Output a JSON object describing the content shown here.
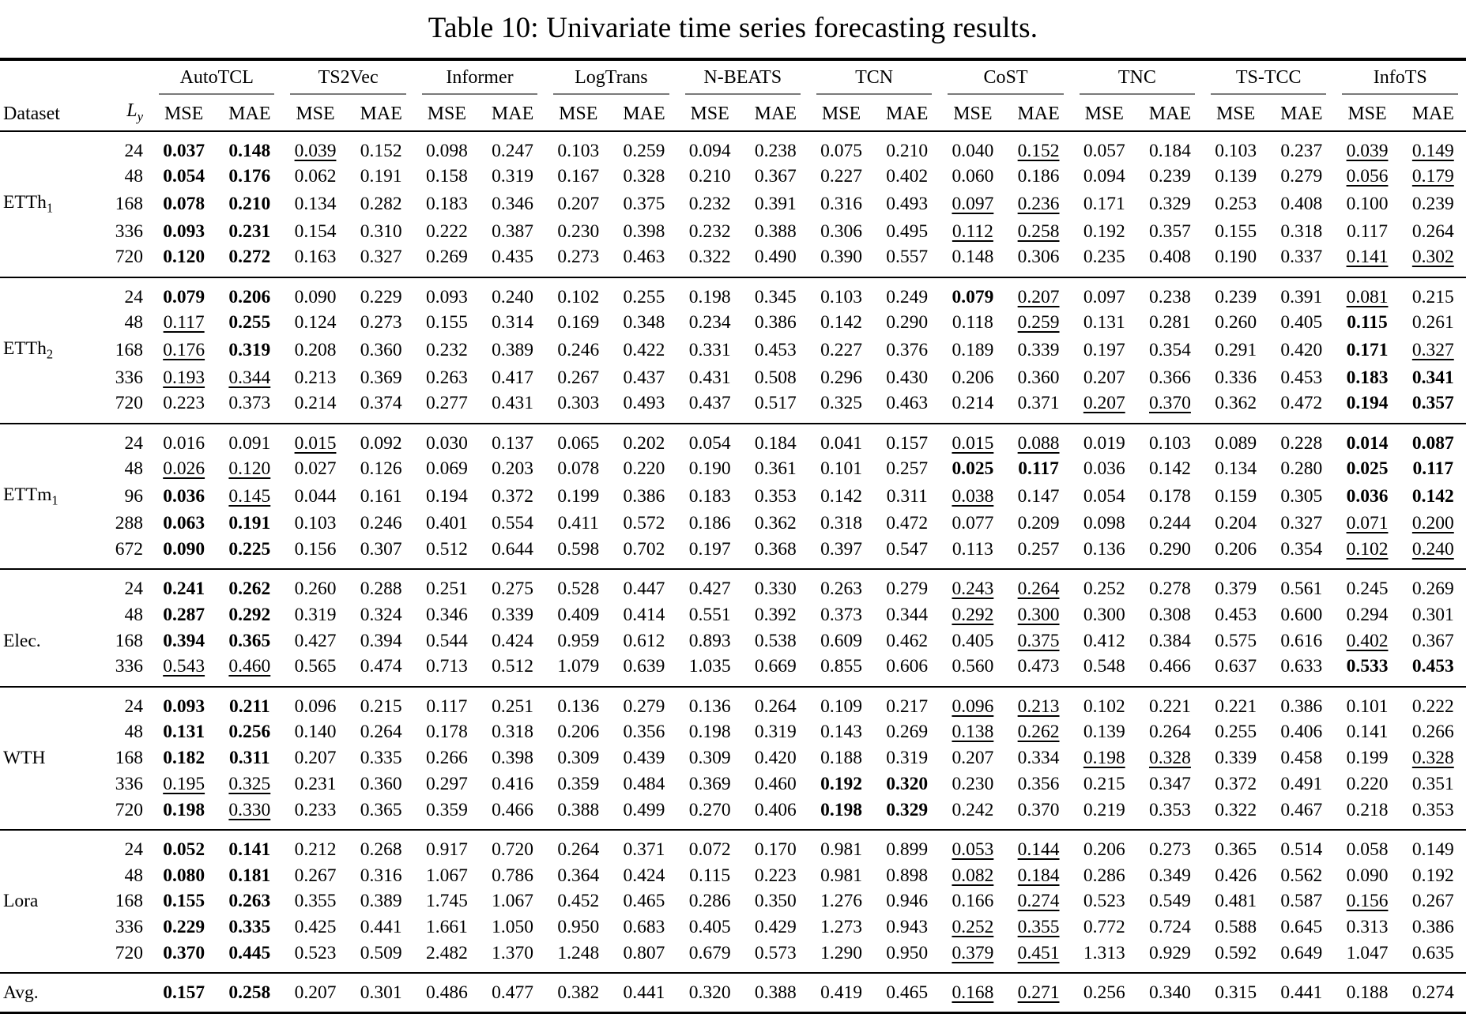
{
  "title": "Table 10: Univariate time series forecasting results.",
  "columns": {
    "dataset_header": "Dataset",
    "horizon_header": {
      "base": "L",
      "sub": "y"
    },
    "metrics": [
      "MSE",
      "MAE"
    ],
    "methods": [
      "AutoTCL",
      "TS2Vec",
      "Informer",
      "LogTrans",
      "N-BEATS",
      "TCN",
      "CoST",
      "TNC",
      "TS-TCC",
      "InfoTS"
    ]
  },
  "style_legend": {
    "bold_prefix": "b:",
    "underline_prefix": "u:"
  },
  "groups": [
    {
      "dataset": {
        "base": "ETTh",
        "sub": "1"
      },
      "rows": [
        {
          "h": "24",
          "cells": [
            "b:0.037",
            "b:0.148",
            "u:0.039",
            "0.152",
            "0.098",
            "0.247",
            "0.103",
            "0.259",
            "0.094",
            "0.238",
            "0.075",
            "0.210",
            "0.040",
            "u:0.152",
            "0.057",
            "0.184",
            "0.103",
            "0.237",
            "u:0.039",
            "u:0.149"
          ]
        },
        {
          "h": "48",
          "cells": [
            "b:0.054",
            "b:0.176",
            "0.062",
            "0.191",
            "0.158",
            "0.319",
            "0.167",
            "0.328",
            "0.210",
            "0.367",
            "0.227",
            "0.402",
            "0.060",
            "0.186",
            "0.094",
            "0.239",
            "0.139",
            "0.279",
            "u:0.056",
            "u:0.179"
          ]
        },
        {
          "h": "168",
          "cells": [
            "b:0.078",
            "b:0.210",
            "0.134",
            "0.282",
            "0.183",
            "0.346",
            "0.207",
            "0.375",
            "0.232",
            "0.391",
            "0.316",
            "0.493",
            "u:0.097",
            "u:0.236",
            "0.171",
            "0.329",
            "0.253",
            "0.408",
            "0.100",
            "0.239"
          ]
        },
        {
          "h": "336",
          "cells": [
            "b:0.093",
            "b:0.231",
            "0.154",
            "0.310",
            "0.222",
            "0.387",
            "0.230",
            "0.398",
            "0.232",
            "0.388",
            "0.306",
            "0.495",
            "u:0.112",
            "u:0.258",
            "0.192",
            "0.357",
            "0.155",
            "0.318",
            "0.117",
            "0.264"
          ]
        },
        {
          "h": "720",
          "cells": [
            "b:0.120",
            "b:0.272",
            "0.163",
            "0.327",
            "0.269",
            "0.435",
            "0.273",
            "0.463",
            "0.322",
            "0.490",
            "0.390",
            "0.557",
            "0.148",
            "0.306",
            "0.235",
            "0.408",
            "0.190",
            "0.337",
            "u:0.141",
            "u:0.302"
          ]
        }
      ]
    },
    {
      "dataset": {
        "base": "ETTh",
        "sub": "2"
      },
      "rows": [
        {
          "h": "24",
          "cells": [
            "b:0.079",
            "b:0.206",
            "0.090",
            "0.229",
            "0.093",
            "0.240",
            "0.102",
            "0.255",
            "0.198",
            "0.345",
            "0.103",
            "0.249",
            "b:0.079",
            "u:0.207",
            "0.097",
            "0.238",
            "0.239",
            "0.391",
            "u:0.081",
            "0.215"
          ]
        },
        {
          "h": "48",
          "cells": [
            "u:0.117",
            "b:0.255",
            "0.124",
            "0.273",
            "0.155",
            "0.314",
            "0.169",
            "0.348",
            "0.234",
            "0.386",
            "0.142",
            "0.290",
            "0.118",
            "u:0.259",
            "0.131",
            "0.281",
            "0.260",
            "0.405",
            "b:0.115",
            "0.261"
          ]
        },
        {
          "h": "168",
          "cells": [
            "u:0.176",
            "b:0.319",
            "0.208",
            "0.360",
            "0.232",
            "0.389",
            "0.246",
            "0.422",
            "0.331",
            "0.453",
            "0.227",
            "0.376",
            "0.189",
            "0.339",
            "0.197",
            "0.354",
            "0.291",
            "0.420",
            "b:0.171",
            "u:0.327"
          ]
        },
        {
          "h": "336",
          "cells": [
            "u:0.193",
            "u:0.344",
            "0.213",
            "0.369",
            "0.263",
            "0.417",
            "0.267",
            "0.437",
            "0.431",
            "0.508",
            "0.296",
            "0.430",
            "0.206",
            "0.360",
            "0.207",
            "0.366",
            "0.336",
            "0.453",
            "b:0.183",
            "b:0.341"
          ]
        },
        {
          "h": "720",
          "cells": [
            "0.223",
            "0.373",
            "0.214",
            "0.374",
            "0.277",
            "0.431",
            "0.303",
            "0.493",
            "0.437",
            "0.517",
            "0.325",
            "0.463",
            "0.214",
            "0.371",
            "u:0.207",
            "u:0.370",
            "0.362",
            "0.472",
            "b:0.194",
            "b:0.357"
          ]
        }
      ]
    },
    {
      "dataset": {
        "base": "ETTm",
        "sub": "1"
      },
      "rows": [
        {
          "h": "24",
          "cells": [
            "0.016",
            "0.091",
            "u:0.015",
            "0.092",
            "0.030",
            "0.137",
            "0.065",
            "0.202",
            "0.054",
            "0.184",
            "0.041",
            "0.157",
            "u:0.015",
            "u:0.088",
            "0.019",
            "0.103",
            "0.089",
            "0.228",
            "b:0.014",
            "b:0.087"
          ]
        },
        {
          "h": "48",
          "cells": [
            "u:0.026",
            "u:0.120",
            "0.027",
            "0.126",
            "0.069",
            "0.203",
            "0.078",
            "0.220",
            "0.190",
            "0.361",
            "0.101",
            "0.257",
            "b:0.025",
            "b:0.117",
            "0.036",
            "0.142",
            "0.134",
            "0.280",
            "b:0.025",
            "b:0.117"
          ]
        },
        {
          "h": "96",
          "cells": [
            "b:0.036",
            "u:0.145",
            "0.044",
            "0.161",
            "0.194",
            "0.372",
            "0.199",
            "0.386",
            "0.183",
            "0.353",
            "0.142",
            "0.311",
            "u:0.038",
            "0.147",
            "0.054",
            "0.178",
            "0.159",
            "0.305",
            "b:0.036",
            "b:0.142"
          ]
        },
        {
          "h": "288",
          "cells": [
            "b:0.063",
            "b:0.191",
            "0.103",
            "0.246",
            "0.401",
            "0.554",
            "0.411",
            "0.572",
            "0.186",
            "0.362",
            "0.318",
            "0.472",
            "0.077",
            "0.209",
            "0.098",
            "0.244",
            "0.204",
            "0.327",
            "u:0.071",
            "u:0.200"
          ]
        },
        {
          "h": "672",
          "cells": [
            "b:0.090",
            "b:0.225",
            "0.156",
            "0.307",
            "0.512",
            "0.644",
            "0.598",
            "0.702",
            "0.197",
            "0.368",
            "0.397",
            "0.547",
            "0.113",
            "0.257",
            "0.136",
            "0.290",
            "0.206",
            "0.354",
            "u:0.102",
            "u:0.240"
          ]
        }
      ]
    },
    {
      "dataset": {
        "base": "Elec.",
        "sub": ""
      },
      "rows": [
        {
          "h": "24",
          "cells": [
            "b:0.241",
            "b:0.262",
            "0.260",
            "0.288",
            "0.251",
            "0.275",
            "0.528",
            "0.447",
            "0.427",
            "0.330",
            "0.263",
            "0.279",
            "u:0.243",
            "u:0.264",
            "0.252",
            "0.278",
            "0.379",
            "0.561",
            "0.245",
            "0.269"
          ]
        },
        {
          "h": "48",
          "cells": [
            "b:0.287",
            "b:0.292",
            "0.319",
            "0.324",
            "0.346",
            "0.339",
            "0.409",
            "0.414",
            "0.551",
            "0.392",
            "0.373",
            "0.344",
            "u:0.292",
            "u:0.300",
            "0.300",
            "0.308",
            "0.453",
            "0.600",
            "0.294",
            "0.301"
          ]
        },
        {
          "h": "168",
          "cells": [
            "b:0.394",
            "b:0.365",
            "0.427",
            "0.394",
            "0.544",
            "0.424",
            "0.959",
            "0.612",
            "0.893",
            "0.538",
            "0.609",
            "0.462",
            "0.405",
            "u:0.375",
            "0.412",
            "0.384",
            "0.575",
            "0.616",
            "u:0.402",
            "0.367"
          ]
        },
        {
          "h": "336",
          "cells": [
            "u:0.543",
            "u:0.460",
            "0.565",
            "0.474",
            "0.713",
            "0.512",
            "1.079",
            "0.639",
            "1.035",
            "0.669",
            "0.855",
            "0.606",
            "0.560",
            "0.473",
            "0.548",
            "0.466",
            "0.637",
            "0.633",
            "b:0.533",
            "b:0.453"
          ]
        }
      ]
    },
    {
      "dataset": {
        "base": "WTH",
        "sub": ""
      },
      "rows": [
        {
          "h": "24",
          "cells": [
            "b:0.093",
            "b:0.211",
            "0.096",
            "0.215",
            "0.117",
            "0.251",
            "0.136",
            "0.279",
            "0.136",
            "0.264",
            "0.109",
            "0.217",
            "u:0.096",
            "u:0.213",
            "0.102",
            "0.221",
            "0.221",
            "0.386",
            "0.101",
            "0.222"
          ]
        },
        {
          "h": "48",
          "cells": [
            "b:0.131",
            "b:0.256",
            "0.140",
            "0.264",
            "0.178",
            "0.318",
            "0.206",
            "0.356",
            "0.198",
            "0.319",
            "0.143",
            "0.269",
            "u:0.138",
            "u:0.262",
            "0.139",
            "0.264",
            "0.255",
            "0.406",
            "0.141",
            "0.266"
          ]
        },
        {
          "h": "168",
          "cells": [
            "b:0.182",
            "b:0.311",
            "0.207",
            "0.335",
            "0.266",
            "0.398",
            "0.309",
            "0.439",
            "0.309",
            "0.420",
            "0.188",
            "0.319",
            "0.207",
            "0.334",
            "u:0.198",
            "u:0.328",
            "0.339",
            "0.458",
            "0.199",
            "u:0.328"
          ]
        },
        {
          "h": "336",
          "cells": [
            "u:0.195",
            "u:0.325",
            "0.231",
            "0.360",
            "0.297",
            "0.416",
            "0.359",
            "0.484",
            "0.369",
            "0.460",
            "b:0.192",
            "b:0.320",
            "0.230",
            "0.356",
            "0.215",
            "0.347",
            "0.372",
            "0.491",
            "0.220",
            "0.351"
          ]
        },
        {
          "h": "720",
          "cells": [
            "b:0.198",
            "u:0.330",
            "0.233",
            "0.365",
            "0.359",
            "0.466",
            "0.388",
            "0.499",
            "0.270",
            "0.406",
            "b:0.198",
            "b:0.329",
            "0.242",
            "0.370",
            "0.219",
            "0.353",
            "0.322",
            "0.467",
            "0.218",
            "0.353"
          ]
        }
      ]
    },
    {
      "dataset": {
        "base": "Lora",
        "sub": ""
      },
      "rows": [
        {
          "h": "24",
          "cells": [
            "b:0.052",
            "b:0.141",
            "0.212",
            "0.268",
            "0.917",
            "0.720",
            "0.264",
            "0.371",
            "0.072",
            "0.170",
            "0.981",
            "0.899",
            "u:0.053",
            "u:0.144",
            "0.206",
            "0.273",
            "0.365",
            "0.514",
            "0.058",
            "0.149"
          ]
        },
        {
          "h": "48",
          "cells": [
            "b:0.080",
            "b:0.181",
            "0.267",
            "0.316",
            "1.067",
            "0.786",
            "0.364",
            "0.424",
            "0.115",
            "0.223",
            "0.981",
            "0.898",
            "u:0.082",
            "u:0.184",
            "0.286",
            "0.349",
            "0.426",
            "0.562",
            "0.090",
            "0.192"
          ]
        },
        {
          "h": "168",
          "cells": [
            "b:0.155",
            "b:0.263",
            "0.355",
            "0.389",
            "1.745",
            "1.067",
            "0.452",
            "0.465",
            "0.286",
            "0.350",
            "1.276",
            "0.946",
            "0.166",
            "u:0.274",
            "0.523",
            "0.549",
            "0.481",
            "0.587",
            "u:0.156",
            "0.267"
          ]
        },
        {
          "h": "336",
          "cells": [
            "b:0.229",
            "b:0.335",
            "0.425",
            "0.441",
            "1.661",
            "1.050",
            "0.950",
            "0.683",
            "0.405",
            "0.429",
            "1.273",
            "0.943",
            "u:0.252",
            "u:0.355",
            "0.772",
            "0.724",
            "0.588",
            "0.645",
            "0.313",
            "0.386"
          ]
        },
        {
          "h": "720",
          "cells": [
            "b:0.370",
            "b:0.445",
            "0.523",
            "0.509",
            "2.482",
            "1.370",
            "1.248",
            "0.807",
            "0.679",
            "0.573",
            "1.290",
            "0.950",
            "u:0.379",
            "u:0.451",
            "1.313",
            "0.929",
            "0.592",
            "0.649",
            "1.047",
            "0.635"
          ]
        }
      ]
    },
    {
      "dataset": {
        "base": "Avg.",
        "sub": ""
      },
      "rows": [
        {
          "h": "",
          "cells": [
            "b:0.157",
            "b:0.258",
            "0.207",
            "0.301",
            "0.486",
            "0.477",
            "0.382",
            "0.441",
            "0.320",
            "0.388",
            "0.419",
            "0.465",
            "u:0.168",
            "u:0.271",
            "0.256",
            "0.340",
            "0.315",
            "0.441",
            "0.188",
            "0.274"
          ]
        }
      ]
    }
  ]
}
